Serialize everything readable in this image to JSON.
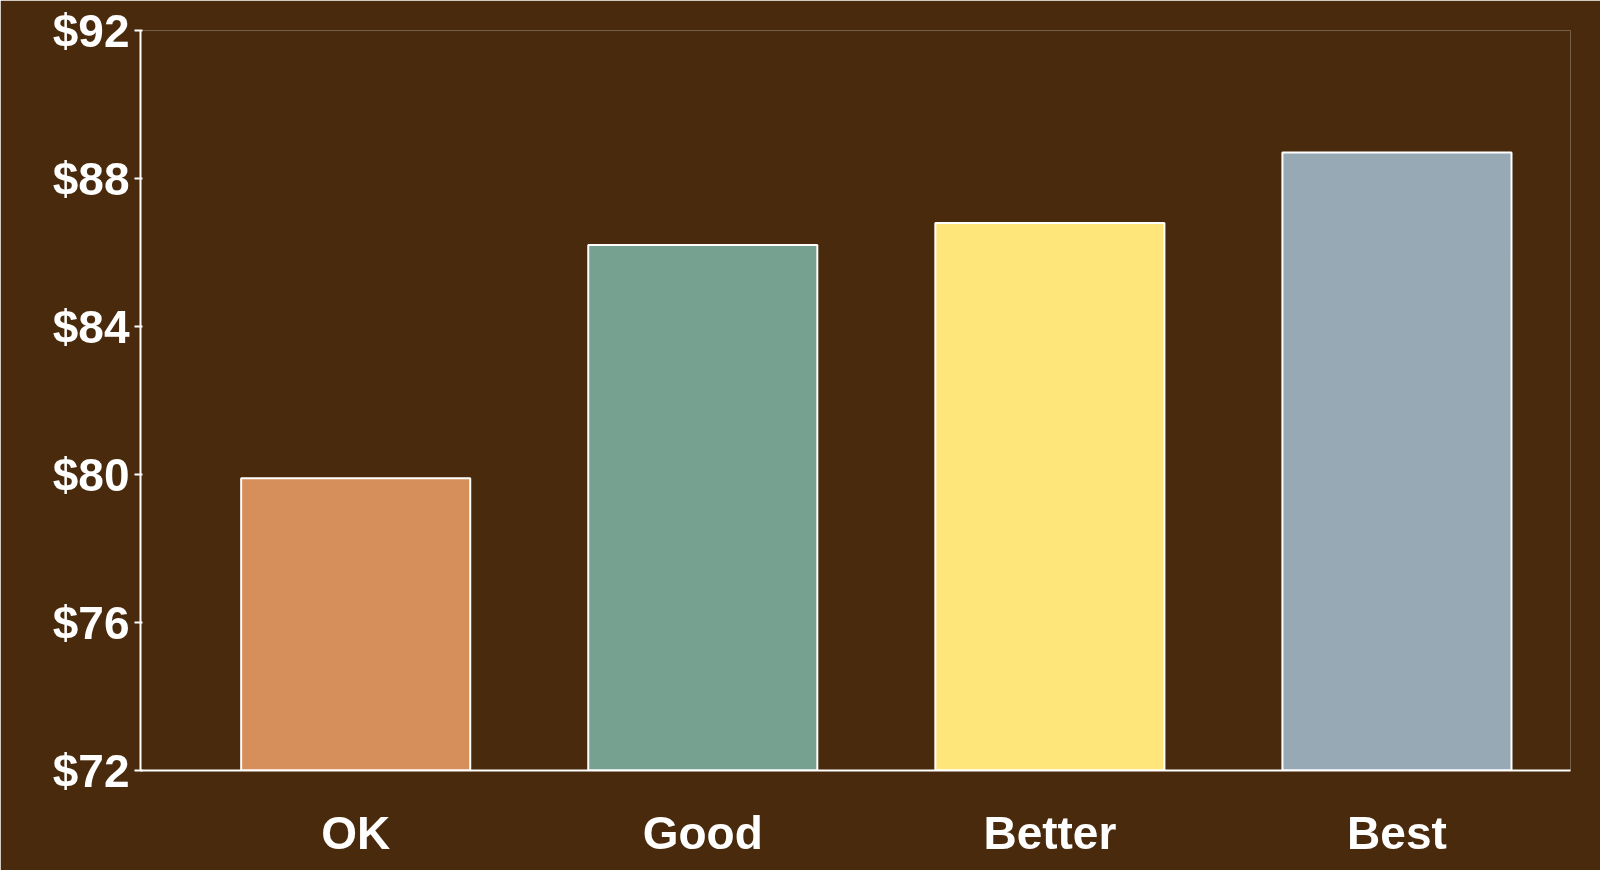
{
  "chart_data": {
    "type": "bar",
    "categories": [
      "OK",
      "Good",
      "Better",
      "Best"
    ],
    "values": [
      79.9,
      86.2,
      86.8,
      88.7
    ],
    "colors": [
      "#d68f5a",
      "#76a08f",
      "#fee67a",
      "#97a9b4"
    ],
    "ylim": [
      72,
      92
    ],
    "yticks": [
      {
        "value": 72,
        "label": "$72"
      },
      {
        "value": 76,
        "label": "$76"
      },
      {
        "value": 80,
        "label": "$80"
      },
      {
        "value": 84,
        "label": "$84"
      },
      {
        "value": 88,
        "label": "$88"
      },
      {
        "value": 92,
        "label": "$92"
      }
    ],
    "grid": false
  }
}
